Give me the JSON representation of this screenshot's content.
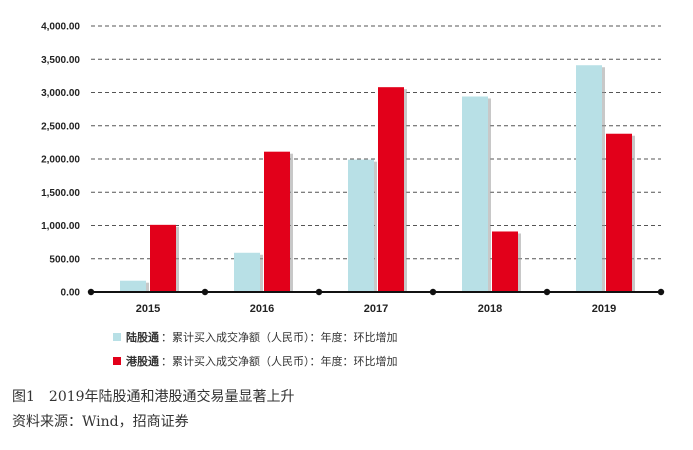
{
  "chart_data": {
    "type": "bar",
    "categories": [
      "2015",
      "2016",
      "2017",
      "2018",
      "2019"
    ],
    "series": [
      {
        "name": "陆股通",
        "color": "#b8e0e6",
        "values": [
          170,
          590,
          1990,
          2940,
          3410
        ]
      },
      {
        "name": "港股通",
        "color": "#e2001a",
        "values": [
          1010,
          2110,
          3080,
          910,
          2380
        ]
      }
    ],
    "ylim": [
      0,
      4000
    ],
    "yticks": [
      0,
      500,
      1000,
      1500,
      2000,
      2500,
      3000,
      3500,
      4000
    ],
    "ytick_labels": [
      "0.00",
      "500.00",
      "1,000.00",
      "1,500.00",
      "2,000.00",
      "2,500.00",
      "3,000.00",
      "3,500.00",
      "4,000.00"
    ],
    "grid": true,
    "legend_position": "bottom-left"
  },
  "legend": {
    "items": [
      {
        "name": "陆股通",
        "desc": "：累计买入成交净额（人民币）：年度：环比增加",
        "color": "#b8e0e6"
      },
      {
        "name": "港股通",
        "desc": "：累计买入成交净额（人民币）：年度：环比增加",
        "color": "#e2001a"
      }
    ]
  },
  "caption": {
    "title": "图1　2019年陆股通和港股通交易量显著上升",
    "source": "资料来源：Wind，招商证券"
  }
}
